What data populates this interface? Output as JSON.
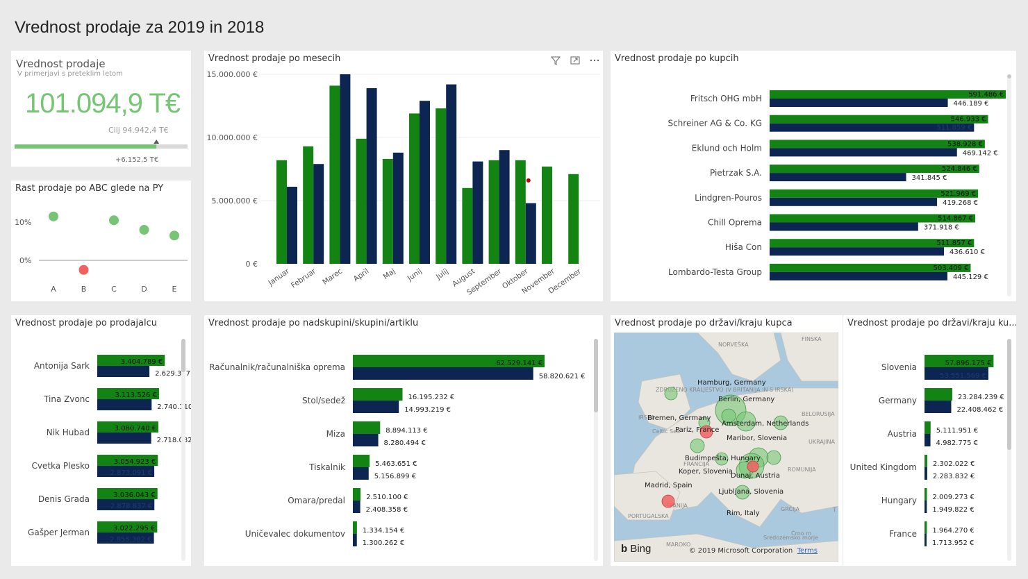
{
  "page_title": "Vrednost prodaje za 2019 in 2018",
  "colors": {
    "current": "#138313",
    "previous": "#0c2651",
    "kpi": "#75c575",
    "bad": "#f06262"
  },
  "kpi": {
    "title": "Vrednost prodaje",
    "subtitle": "V primerjavi s preteklim letom",
    "value": "101.094,9 T€",
    "target_label": "Cilj 94.942,4 T€",
    "difference": "+6.152,5 T€",
    "progress_fraction": 0.82
  },
  "abc": {
    "title": "Rast prodaje po ABC glede na PY",
    "y_ticks": [
      "10%",
      "0%"
    ],
    "categories": [
      "A",
      "B",
      "C",
      "D",
      "E"
    ],
    "values": [
      11.5,
      -2.5,
      10.5,
      8,
      6.5
    ]
  },
  "monthly": {
    "title": "Vrednost prodaje po mesecih",
    "y_ticks": [
      "15.000.000 €",
      "10.000.000 €",
      "5.000.000 €",
      "0 €"
    ],
    "ymax": 15000000,
    "months": [
      "Januar",
      "Februar",
      "Marec",
      "April",
      "Maj",
      "Junij",
      "Julij",
      "August",
      "September",
      "Oktober",
      "November",
      "December"
    ],
    "current": [
      8200000,
      9300000,
      14100000,
      9900000,
      8300000,
      11900000,
      12300000,
      6000000,
      8200000,
      8200000,
      7700000,
      7100000
    ],
    "previous": [
      6100000,
      7900000,
      15000000,
      13900000,
      8800000,
      12900000,
      14200000,
      8100000,
      9000000,
      4800000,
      null,
      null
    ],
    "marker_value": 6600000
  },
  "customers": {
    "title": "Vrednost prodaje po kupcih",
    "max": 600000,
    "rows": [
      {
        "name": "Fritsch OHG mbH",
        "cur": 591486,
        "cur_label": "591.486 €",
        "prev": 446189,
        "prev_label": "446.189 €"
      },
      {
        "name": "Schreiner AG & Co. KG",
        "cur": 546933,
        "cur_label": "546.933 €",
        "prev": 511859,
        "prev_label": "511.859 €"
      },
      {
        "name": "Eklund och Holm",
        "cur": 538928,
        "cur_label": "538.928 €",
        "prev": 469142,
        "prev_label": "469.142 €"
      },
      {
        "name": "Pietrzak S.A.",
        "cur": 524846,
        "cur_label": "524.846 €",
        "prev": 341845,
        "prev_label": "341.845 €"
      },
      {
        "name": "Lindgren-Pouros",
        "cur": 521969,
        "cur_label": "521.969 €",
        "prev": 419268,
        "prev_label": "419.268 €"
      },
      {
        "name": "Chill Oprema",
        "cur": 514867,
        "cur_label": "514.867 €",
        "prev": 371918,
        "prev_label": "371.918 €"
      },
      {
        "name": "Hiša Con",
        "cur": 511857,
        "cur_label": "511.857 €",
        "prev": 436610,
        "prev_label": "436.610 €"
      },
      {
        "name": "Lombardo-Testa Group",
        "cur": 503409,
        "cur_label": "503.409 €",
        "prev": 445129,
        "prev_label": "445.129 €"
      }
    ]
  },
  "sellers": {
    "title": "Vrednost prodaje po prodajalcu",
    "max": 3500000,
    "rows": [
      {
        "name": "Antonija Sark",
        "cur": 3404789,
        "cur_label": "3.404.789 €",
        "prev": 2629387,
        "prev_label": "2.629.387 €"
      },
      {
        "name": "Tina Zvonc",
        "cur": 3113526,
        "cur_label": "3.113.526 €",
        "prev": 2740110,
        "prev_label": "2.740.110 €"
      },
      {
        "name": "Nik Hubad",
        "cur": 3080740,
        "cur_label": "3.080.740 €",
        "prev": 2718082,
        "prev_label": "2.718.082 €"
      },
      {
        "name": "Cvetka Plesko",
        "cur": 3054923,
        "cur_label": "3.054.923 €",
        "prev": 2873091,
        "prev_label": "2.873.091 €"
      },
      {
        "name": "Denis Grada",
        "cur": 3036043,
        "cur_label": "3.036.043 €",
        "prev": 2878837,
        "prev_label": "2.878.837 €"
      },
      {
        "name": "Gašper Jerman",
        "cur": 3022295,
        "cur_label": "3.022.295 €",
        "prev": 2855382,
        "prev_label": "2.855.382 €"
      }
    ]
  },
  "groups": {
    "title": "Vrednost prodaje po nadskupini/skupini/artiklu",
    "max": 65000000,
    "rows": [
      {
        "name": "Računalnik/računalniška oprema",
        "cur": 62529141,
        "cur_label": "62.529.141 €",
        "prev": 58820621,
        "prev_label": "58.820.621 €"
      },
      {
        "name": "Stol/sedež",
        "cur": 16195232,
        "cur_label": "16.195.232 €",
        "prev": 14993219,
        "prev_label": "14.993.219 €"
      },
      {
        "name": "Miza",
        "cur": 8894113,
        "cur_label": "8.894.113 €",
        "prev": 8280494,
        "prev_label": "8.280.494 €"
      },
      {
        "name": "Tiskalnik",
        "cur": 5463651,
        "cur_label": "5.463.651 €",
        "prev": 5156899,
        "prev_label": "5.156.899 €"
      },
      {
        "name": "Omara/predal",
        "cur": 2510100,
        "cur_label": "2.510.100 €",
        "prev": 2408358,
        "prev_label": "2.408.358 €"
      },
      {
        "name": "Uničevalec dokumentov",
        "cur": 1334154,
        "cur_label": "1.334.154 €",
        "prev": 1300262,
        "prev_label": "1.300.262 €"
      }
    ]
  },
  "map": {
    "title": "Vrednost prodaje po državi/kraju kupca",
    "bing_label": "Bing",
    "copyright": "© 2019 Microsoft Corporation",
    "terms": "Terms",
    "region_labels": [
      "NORVEŠKA",
      "FINSKA",
      "ZDRUŽENO KRALJESTVO (V BRITANIJA IN S IRSKA)",
      "IRSKA",
      "Celtic Sea",
      "BELORUSIJA",
      "UKRAJINA",
      "FRANCIJA",
      "ROMUNIJA",
      "ŠPANIJA",
      "PORTUGALSKA",
      "GRČIJA",
      "MAROKO",
      "Črno m",
      "Sredozemsko morje",
      "T"
    ],
    "city_labels": [
      "Hamburg, Germany",
      "Berlin, Germany",
      "Bremen, Germany",
      "Amsterdam, Netherlands",
      "Pariz, France",
      "Maribor, Slovenia",
      "Budimpešta, Hungary",
      "Koper, Slovenia",
      "Dunaj, Austria",
      "Madrid, Spain",
      "Ljubljana, Slovenia",
      "Rim, Italy"
    ]
  },
  "countries": {
    "title": "Vrednost prodaje po državi/kraju ku...",
    "max": 60000000,
    "rows": [
      {
        "name": "Slovenia",
        "cur": 57896175,
        "cur_label": "57.896.175 €",
        "prev": 53551569,
        "prev_label": "53.551.569 €"
      },
      {
        "name": "Germany",
        "cur": 23284239,
        "cur_label": "23.284.239 €",
        "prev": 22408462,
        "prev_label": "22.408.462 €"
      },
      {
        "name": "Austria",
        "cur": 5111951,
        "cur_label": "5.111.951 €",
        "prev": 4982775,
        "prev_label": "4.982.775 €"
      },
      {
        "name": "United Kingdom",
        "cur": 2302022,
        "cur_label": "2.302.022 €",
        "prev": 2283832,
        "prev_label": "2.283.832 €"
      },
      {
        "name": "Hungary",
        "cur": 2009273,
        "cur_label": "2.009.273 €",
        "prev": 1949822,
        "prev_label": "1.949.822 €"
      },
      {
        "name": "France",
        "cur": 1964270,
        "cur_label": "1.964.270 €",
        "prev": 1713952,
        "prev_label": "1.713.952 €"
      }
    ]
  }
}
